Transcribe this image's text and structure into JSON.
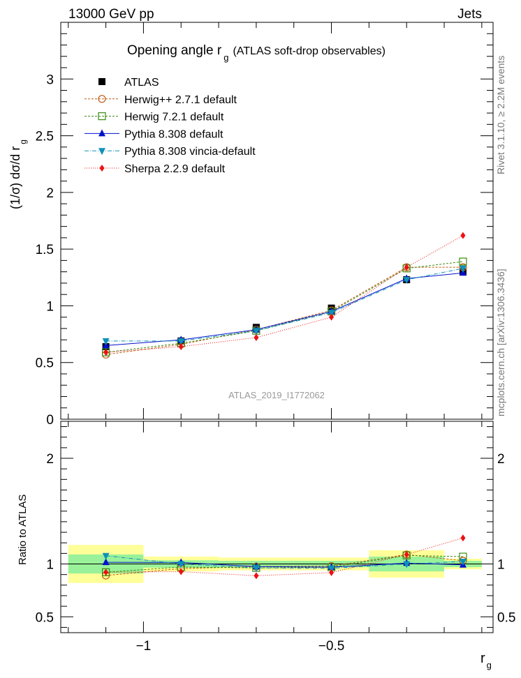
{
  "header": {
    "left": "13000 GeV pp",
    "right": "Jets"
  },
  "chart_data": {
    "type": "line",
    "title": "Opening angle r",
    "title_sub": "g",
    "title_suffix": "(ATLAS soft-drop observables)",
    "ylabel_main": "(1/σ) dσ/d r",
    "ylabel_sub": "g",
    "ylabel_ratio": "Ratio to ATLAS",
    "xlabel": "r",
    "xlabel_sub": "g",
    "xlim": [
      -1.22,
      -0.07
    ],
    "ylim_main": [
      0,
      3.5
    ],
    "ylim_ratio": [
      0.35,
      2.35
    ],
    "x_ticks": [
      -1,
      -0.5
    ],
    "x_tick_labels": [
      "−1",
      "−0.5"
    ],
    "y_ticks_main": [
      0,
      0.5,
      1,
      1.5,
      2,
      2.5,
      3
    ],
    "y_tick_labels_main": [
      "0",
      "0.5",
      "1",
      "1.5",
      "2",
      "2.5",
      "3"
    ],
    "y_ticks_ratio": [
      0.5,
      1,
      2
    ],
    "y_tick_labels_ratio": [
      "0.5",
      "1",
      "2"
    ],
    "watermark": "ATLAS_2019_I1772062",
    "side_label_top": "Rivet 3.1.10, ≥ 2.2M events",
    "side_label_bottom": "mcplots.cern.ch [arXiv:1306.3436]",
    "bins": [
      {
        "lo": -1.2,
        "hi": -1.0
      },
      {
        "lo": -1.0,
        "hi": -0.8
      },
      {
        "lo": -0.8,
        "hi": -0.6
      },
      {
        "lo": -0.6,
        "hi": -0.4
      },
      {
        "lo": -0.4,
        "hi": -0.2
      },
      {
        "lo": -0.2,
        "hi": -0.1
      }
    ],
    "x": [
      -1.1,
      -0.9,
      -0.7,
      -0.5,
      -0.3,
      -0.15
    ],
    "data": {
      "name": "ATLAS",
      "color": "#000000",
      "values": [
        0.64,
        0.69,
        0.81,
        0.98,
        1.23,
        1.3
      ],
      "band_yellow_rel": [
        0.18,
        0.07,
        0.06,
        0.06,
        0.13,
        0.05
      ],
      "band_green_rel": [
        0.09,
        0.035,
        0.03,
        0.03,
        0.07,
        0.03
      ]
    },
    "series": [
      {
        "name": "Herwig++ 2.7.1 default",
        "color": "#c05a10",
        "dash": "3,2",
        "marker": "circle-open",
        "values": [
          0.57,
          0.66,
          0.79,
          0.96,
          1.34,
          1.34
        ]
      },
      {
        "name": "Herwig 7.2.1 default",
        "color": "#3a8a10",
        "dash": "3,2",
        "marker": "square-open",
        "values": [
          0.59,
          0.67,
          0.78,
          0.95,
          1.33,
          1.39
        ]
      },
      {
        "name": "Pythia 8.308 default",
        "color": "#0010cc",
        "dash": "",
        "marker": "triangle-up",
        "values": [
          0.65,
          0.7,
          0.79,
          0.95,
          1.24,
          1.29
        ]
      },
      {
        "name": "Pythia 8.308 vincia-default",
        "color": "#1090b8",
        "dash": "6,2,1,2",
        "marker": "triangle-down",
        "values": [
          0.69,
          0.69,
          0.78,
          0.94,
          1.23,
          1.33
        ]
      },
      {
        "name": "Sherpa 2.2.9 default",
        "color": "#ee1010",
        "dash": "1,2",
        "marker": "diamond",
        "values": [
          0.59,
          0.64,
          0.72,
          0.9,
          1.34,
          1.62
        ]
      }
    ]
  }
}
